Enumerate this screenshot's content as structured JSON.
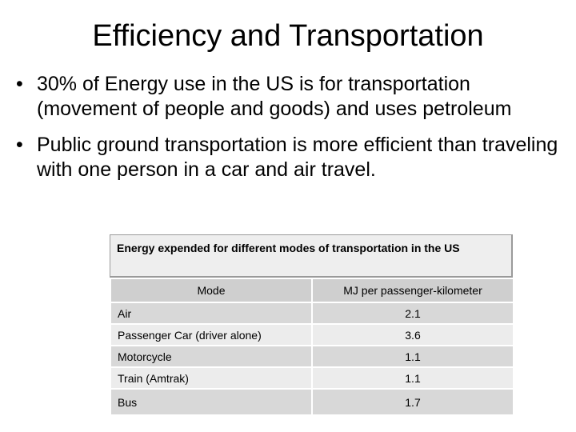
{
  "title": "Efficiency and Transportation",
  "bullets": [
    "30% of Energy use in the US is for transportation (movement of people and goods) and uses petroleum",
    "Public ground transportation is more efficient than traveling with one person in a car and air travel."
  ],
  "bullet_symbol": "•",
  "table": {
    "caption": "Energy expended for different modes of transportation in the US",
    "headers": [
      "Mode",
      "MJ per passenger-kilometer"
    ],
    "rows": [
      {
        "mode": "Air",
        "value": "2.1"
      },
      {
        "mode": "Passenger Car (driver alone)",
        "value": "3.6"
      },
      {
        "mode": "Motorcycle",
        "value": "1.1"
      },
      {
        "mode": "Train (Amtrak)",
        "value": "1.1"
      },
      {
        "mode": "Bus",
        "value": "1.7"
      }
    ]
  }
}
